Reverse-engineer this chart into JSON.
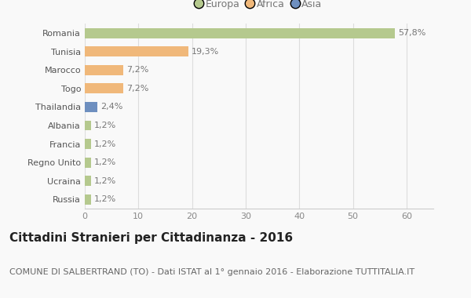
{
  "categories": [
    "Romania",
    "Tunisia",
    "Marocco",
    "Togo",
    "Thailandia",
    "Albania",
    "Francia",
    "Regno Unito",
    "Ucraina",
    "Russia"
  ],
  "values": [
    57.8,
    19.3,
    7.2,
    7.2,
    2.4,
    1.2,
    1.2,
    1.2,
    1.2,
    1.2
  ],
  "labels": [
    "57,8%",
    "19,3%",
    "7,2%",
    "7,2%",
    "2,4%",
    "1,2%",
    "1,2%",
    "1,2%",
    "1,2%",
    "1,2%"
  ],
  "colors": [
    "#b5c98e",
    "#f0b87a",
    "#f0b87a",
    "#f0b87a",
    "#6e8fbf",
    "#b5c98e",
    "#b5c98e",
    "#b5c98e",
    "#b5c98e",
    "#b5c98e"
  ],
  "legend_labels": [
    "Europa",
    "Africa",
    "Asia"
  ],
  "legend_colors": [
    "#b5c98e",
    "#f0b87a",
    "#6e8fbf"
  ],
  "title": "Cittadini Stranieri per Cittadinanza - 2016",
  "subtitle": "COMUNE DI SALBERTRAND (TO) - Dati ISTAT al 1° gennaio 2016 - Elaborazione TUTTITALIA.IT",
  "xlim": [
    0,
    65
  ],
  "xticks": [
    0,
    10,
    20,
    30,
    40,
    50,
    60
  ],
  "bg_color": "#f9f9f9",
  "bar_height": 0.55,
  "title_fontsize": 11,
  "subtitle_fontsize": 8,
  "label_fontsize": 8,
  "tick_fontsize": 8,
  "legend_fontsize": 9
}
